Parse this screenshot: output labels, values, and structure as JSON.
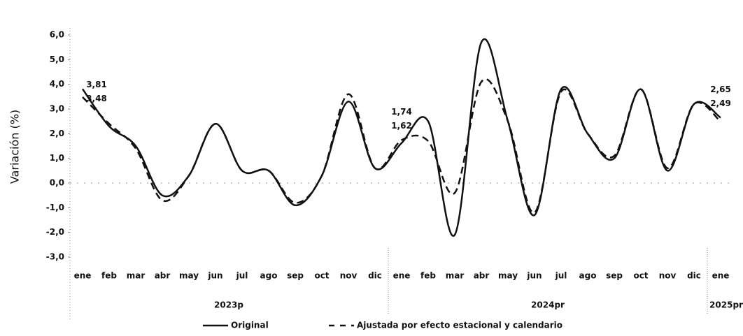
{
  "chart_data": {
    "type": "line",
    "y_label": "Variación (%)",
    "categories": [
      "ene",
      "feb",
      "mar",
      "abr",
      "may",
      "jun",
      "jul",
      "ago",
      "sep",
      "oct",
      "nov",
      "dic",
      "ene",
      "feb",
      "mar",
      "abr",
      "may",
      "jun",
      "jul",
      "ago",
      "sep",
      "oct",
      "nov",
      "dic",
      "ene"
    ],
    "groups": [
      {
        "label": "2023p",
        "start": 0,
        "end": 11
      },
      {
        "label": "2024pr",
        "start": 12,
        "end": 23
      },
      {
        "label": "2025pr",
        "start": 24,
        "end": 24
      }
    ],
    "ylim": [
      -3,
      6
    ],
    "yticks": [
      {
        "value": -3,
        "label": "-3,0"
      },
      {
        "value": -2,
        "label": "-2,0"
      },
      {
        "value": -1,
        "label": "-1,0"
      },
      {
        "value": 0,
        "label": "0,0"
      },
      {
        "value": 1,
        "label": "1,0"
      },
      {
        "value": 2,
        "label": "2,0"
      },
      {
        "value": 3,
        "label": "3,0"
      },
      {
        "value": 4,
        "label": "4,0"
      },
      {
        "value": 5,
        "label": "5,0"
      },
      {
        "value": 6,
        "label": "6,0"
      }
    ],
    "series": [
      {
        "name": "Original",
        "color": "#111111",
        "dash": false,
        "values": [
          3.81,
          2.3,
          1.5,
          -0.5,
          0.3,
          2.4,
          0.5,
          0.5,
          -0.9,
          0.3,
          3.3,
          0.6,
          1.62,
          2.5,
          -2.1,
          5.7,
          2.5,
          -1.3,
          3.8,
          2.0,
          1.0,
          3.8,
          0.5,
          3.2,
          2.65
        ],
        "value_labels": [
          "3,81",
          null,
          null,
          null,
          null,
          null,
          null,
          null,
          null,
          null,
          null,
          null,
          "1,62",
          null,
          null,
          null,
          null,
          null,
          null,
          null,
          null,
          null,
          null,
          null,
          "2,65"
        ]
      },
      {
        "name": "Ajustada por efecto estacional y calendario",
        "color": "#111111",
        "dash": true,
        "values": [
          3.48,
          2.4,
          1.4,
          -0.7,
          0.3,
          2.4,
          0.5,
          0.5,
          -0.8,
          0.3,
          3.6,
          0.6,
          1.74,
          1.7,
          -0.4,
          4.1,
          2.5,
          -1.2,
          3.7,
          2.0,
          1.1,
          3.8,
          0.6,
          3.2,
          2.49
        ],
        "value_labels": [
          "3,48",
          null,
          null,
          null,
          null,
          null,
          null,
          null,
          null,
          null,
          null,
          null,
          "1,74",
          null,
          null,
          null,
          null,
          null,
          null,
          null,
          null,
          null,
          null,
          null,
          "2,49"
        ]
      }
    ]
  }
}
